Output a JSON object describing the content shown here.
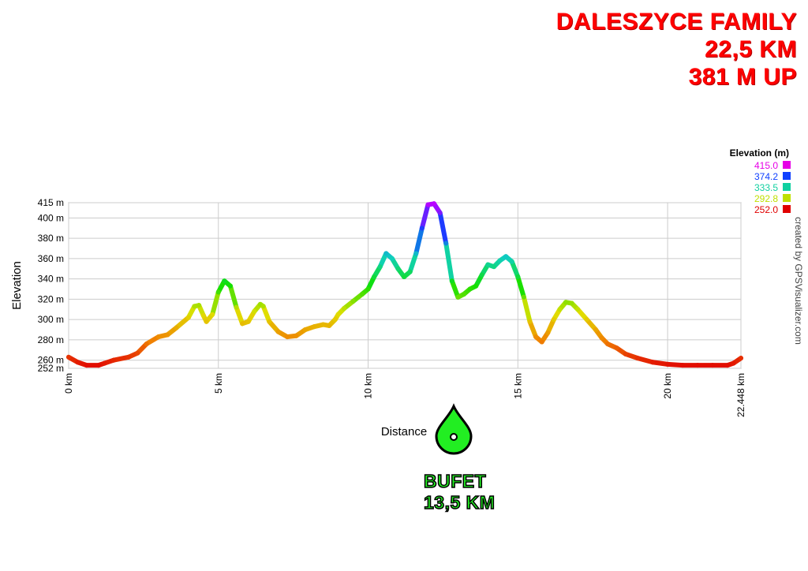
{
  "header": {
    "route_name": "DALESZYCE FAMILY",
    "distance": "22,5 KM",
    "climb": "381 M UP"
  },
  "credit": "created by GPSVisualizer.com",
  "aid_station": {
    "label": "BUFET",
    "distance": "13,5 KM",
    "icon": "water-drop-icon",
    "color": "#22ee22"
  },
  "chart_data": {
    "type": "line",
    "xlabel": "Distance",
    "ylabel": "Elevation",
    "xlim": [
      0,
      22.448
    ],
    "ylim": [
      252,
      415
    ],
    "x_ticks": [
      0,
      5,
      10,
      15,
      20,
      22.448
    ],
    "x_tick_labels": [
      "0 km",
      "5 km",
      "10 km",
      "15 km",
      "20 km",
      "22.448 km"
    ],
    "y_ticks": [
      252,
      260,
      280,
      300,
      320,
      340,
      360,
      380,
      400,
      415
    ],
    "y_tick_labels": [
      "252 m",
      "260 m",
      "280 m",
      "300 m",
      "320 m",
      "340 m",
      "360 m",
      "380 m",
      "400 m",
      "415 m"
    ],
    "grid": true,
    "legend": {
      "title": "Elevation (m)",
      "position": "top-right",
      "entries": [
        {
          "label": "415.0",
          "color": "#e600e6"
        },
        {
          "label": "374.2",
          "color": "#1040ff"
        },
        {
          "label": "333.5",
          "color": "#10d0a0"
        },
        {
          "label": "292.8",
          "color": "#c0e000"
        },
        {
          "label": "252.0",
          "color": "#e00000"
        }
      ]
    },
    "color_scale": {
      "min": 252.0,
      "max": 415.0,
      "stops": [
        "#e00000",
        "#f08000",
        "#e0e000",
        "#10e000",
        "#10d0c0",
        "#1040ff",
        "#c000ff"
      ]
    },
    "series": [
      {
        "x": [
          0,
          0.3,
          0.6,
          1.0,
          1.2,
          1.5,
          2.0,
          2.3,
          2.6,
          3.0,
          3.3,
          3.6,
          4.0,
          4.2,
          4.35,
          4.5,
          4.6,
          4.8,
          5.0,
          5.2,
          5.4,
          5.6,
          5.8,
          6.0,
          6.2,
          6.4,
          6.5,
          6.7,
          7.0,
          7.3,
          7.6,
          7.9,
          8.2,
          8.5,
          8.7,
          8.9,
          9.0,
          9.2,
          9.5,
          9.8,
          10.0,
          10.2,
          10.4,
          10.6,
          10.8,
          11.0,
          11.2,
          11.4,
          11.6,
          11.8,
          12.0,
          12.2,
          12.4,
          12.6,
          12.8,
          13.0,
          13.2,
          13.4,
          13.6,
          13.8,
          14.0,
          14.2,
          14.4,
          14.6,
          14.8,
          15.0,
          15.2,
          15.4,
          15.6,
          15.8,
          16.0,
          16.2,
          16.4,
          16.6,
          16.8,
          17.0,
          17.3,
          17.6,
          17.8,
          18.0,
          18.3,
          18.6,
          19.0,
          19.5,
          20.0,
          20.5,
          21.0,
          21.5,
          22.0,
          22.2,
          22.448
        ],
        "y": [
          263,
          258,
          255,
          255,
          257,
          260,
          263,
          267,
          276,
          283,
          285,
          292,
          302,
          313,
          314,
          304,
          298,
          305,
          327,
          338,
          333,
          312,
          296,
          298,
          308,
          315,
          313,
          298,
          288,
          283,
          284,
          290,
          293,
          295,
          294,
          300,
          305,
          311,
          318,
          325,
          330,
          342,
          352,
          365,
          360,
          350,
          342,
          347,
          365,
          390,
          413,
          414,
          405,
          375,
          338,
          322,
          325,
          330,
          333,
          344,
          354,
          352,
          358,
          362,
          357,
          342,
          322,
          298,
          283,
          278,
          287,
          300,
          310,
          317,
          316,
          310,
          300,
          290,
          282,
          276,
          272,
          266,
          262,
          258,
          256,
          255,
          255,
          255,
          255,
          257,
          262
        ]
      }
    ]
  }
}
